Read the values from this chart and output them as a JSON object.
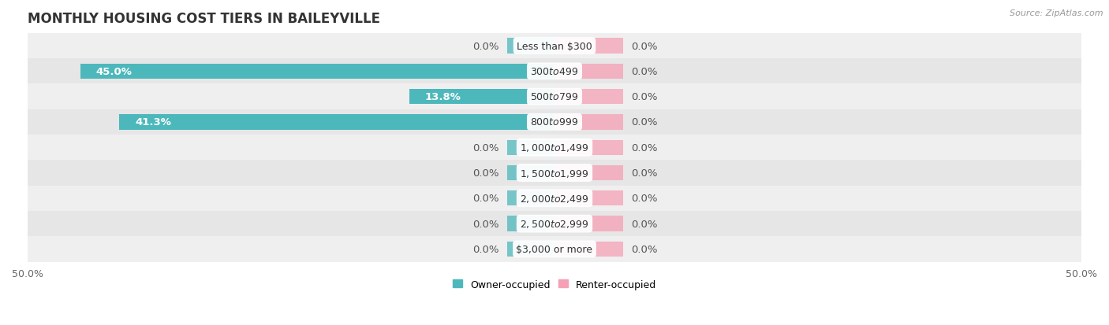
{
  "title": "MONTHLY HOUSING COST TIERS IN BAILEYVILLE",
  "source": "Source: ZipAtlas.com",
  "categories": [
    "Less than $300",
    "$300 to $499",
    "$500 to $799",
    "$800 to $999",
    "$1,000 to $1,499",
    "$1,500 to $1,999",
    "$2,000 to $2,499",
    "$2,500 to $2,999",
    "$3,000 or more"
  ],
  "owner_values": [
    0.0,
    45.0,
    13.8,
    41.3,
    0.0,
    0.0,
    0.0,
    0.0,
    0.0
  ],
  "renter_values": [
    0.0,
    0.0,
    0.0,
    0.0,
    0.0,
    0.0,
    0.0,
    0.0,
    0.0
  ],
  "owner_color": "#4db8bc",
  "renter_color": "#f5a0b5",
  "row_bg_even": "#efefef",
  "row_bg_odd": "#e6e6e6",
  "axis_limit": 50.0,
  "bar_height": 0.6,
  "stub_size": 4.5,
  "renter_stub_size": 6.5,
  "title_fontsize": 12,
  "label_fontsize": 9.5,
  "tick_fontsize": 9,
  "source_fontsize": 8,
  "legend_fontsize": 9,
  "category_fontsize": 9
}
